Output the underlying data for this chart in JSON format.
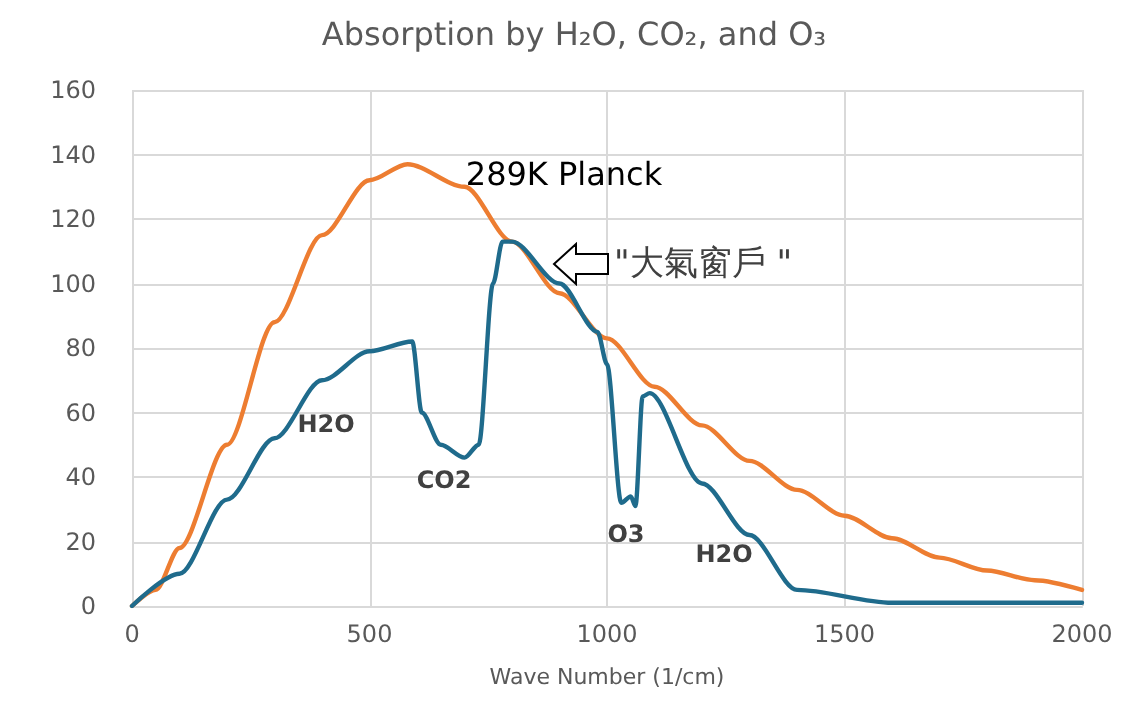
{
  "chart_data": {
    "type": "line",
    "title": "Absorption by H₂O, CO₂, and O₃",
    "xlabel": "Wave Number (1/cm)",
    "xlim": [
      0,
      2000
    ],
    "xticks": [
      0,
      500,
      1000,
      1500,
      2000
    ],
    "ylim": [
      0,
      160
    ],
    "yticks": [
      0,
      20,
      40,
      60,
      80,
      100,
      120,
      140,
      160
    ],
    "grid": true,
    "marker": "none",
    "line_style": "solid",
    "series": [
      {
        "color": "#ed7d31",
        "x": [
          0,
          50,
          100,
          200,
          300,
          400,
          500,
          580,
          700,
          800,
          900,
          1000,
          1100,
          1200,
          1300,
          1400,
          1500,
          1600,
          1700,
          1800,
          1900,
          2000
        ],
        "values": [
          0,
          5,
          18,
          50,
          88,
          115,
          132,
          137,
          130,
          113,
          97,
          83,
          68,
          56,
          45,
          36,
          28,
          21,
          15,
          11,
          8,
          5
        ]
      },
      {
        "color": "#1f6b8c",
        "x": [
          0,
          100,
          200,
          300,
          400,
          500,
          590,
          610,
          650,
          700,
          730,
          760,
          780,
          800,
          900,
          980,
          1000,
          1030,
          1050,
          1060,
          1075,
          1090,
          1200,
          1300,
          1400,
          1600,
          2000
        ],
        "values": [
          0,
          10,
          33,
          52,
          70,
          79,
          82,
          60,
          50,
          46,
          50,
          100,
          113,
          113,
          100,
          85,
          75,
          32,
          34,
          31,
          65,
          66,
          38,
          22,
          5,
          1,
          1
        ]
      }
    ],
    "annotations": [
      "289K Planck",
      "H2O",
      "CO2",
      "O3",
      "H2O",
      "\"大氣窗戶 \""
    ]
  }
}
